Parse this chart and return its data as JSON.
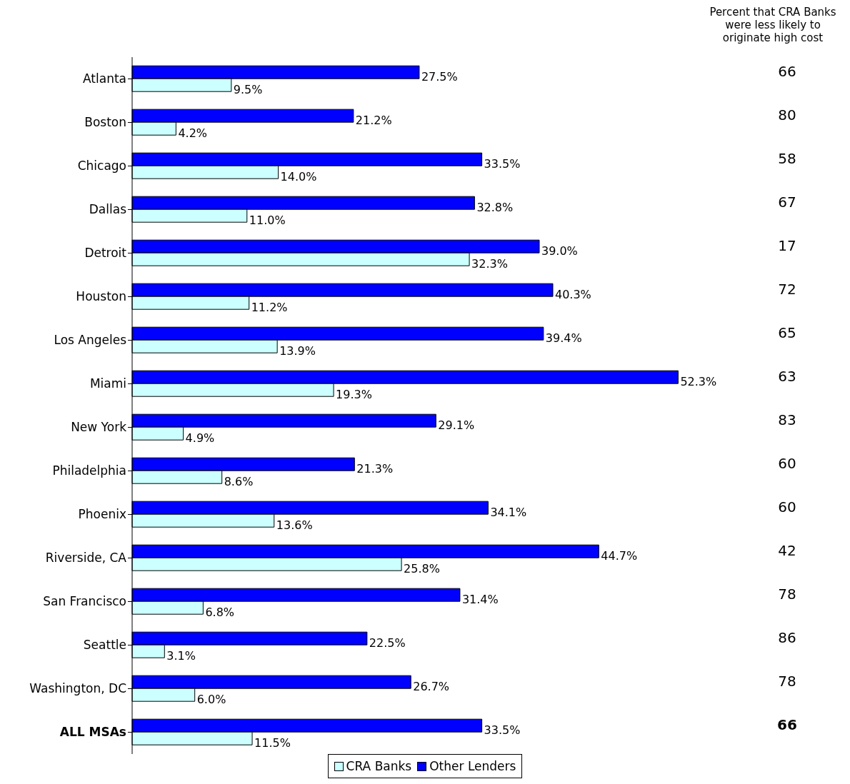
{
  "chart_data": {
    "type": "bar",
    "orientation": "horizontal",
    "categories": [
      "Atlanta",
      "Boston",
      "Chicago",
      "Dallas",
      "Detroit",
      "Houston",
      "Los Angeles",
      "Miami",
      "New York",
      "Philadelphia",
      "Phoenix",
      "Riverside, CA",
      "San Francisco",
      "Seattle",
      "Washington, DC",
      "ALL MSAs"
    ],
    "series": [
      {
        "name": "CRA Banks",
        "color": "#ccffff",
        "values": [
          9.5,
          4.2,
          14.0,
          11.0,
          32.3,
          11.2,
          13.9,
          19.3,
          4.9,
          8.6,
          13.6,
          25.8,
          6.8,
          3.1,
          6.0,
          11.5
        ],
        "value_labels": [
          "9.5%",
          "4.2%",
          "14.0%",
          "11.0%",
          "32.3%",
          "11.2%",
          "13.9%",
          "19.3%",
          "4.9%",
          "8.6%",
          "13.6%",
          "25.8%",
          "6.8%",
          "3.1%",
          "6.0%",
          "11.5%"
        ]
      },
      {
        "name": "Other Lenders",
        "color": "#0000ff",
        "values": [
          27.5,
          21.2,
          33.5,
          32.8,
          39.0,
          40.3,
          39.4,
          52.3,
          29.1,
          21.3,
          34.1,
          44.7,
          31.4,
          22.5,
          26.7,
          33.5
        ],
        "value_labels": [
          "27.5%",
          "21.2%",
          "33.5%",
          "32.8%",
          "39.0%",
          "40.3%",
          "39.4%",
          "52.3%",
          "29.1%",
          "21.3%",
          "34.1%",
          "44.7%",
          "31.4%",
          "22.5%",
          "26.7%",
          "33.5%"
        ]
      }
    ],
    "annotations": [
      "Percent that CRA Banks were less likely to originate high cost",
      "66",
      "80",
      "58",
      "67",
      "17",
      "72",
      "65",
      "63",
      "83",
      "60",
      "60",
      "42",
      "78",
      "86",
      "78",
      "66"
    ],
    "legend": "bottom"
  }
}
